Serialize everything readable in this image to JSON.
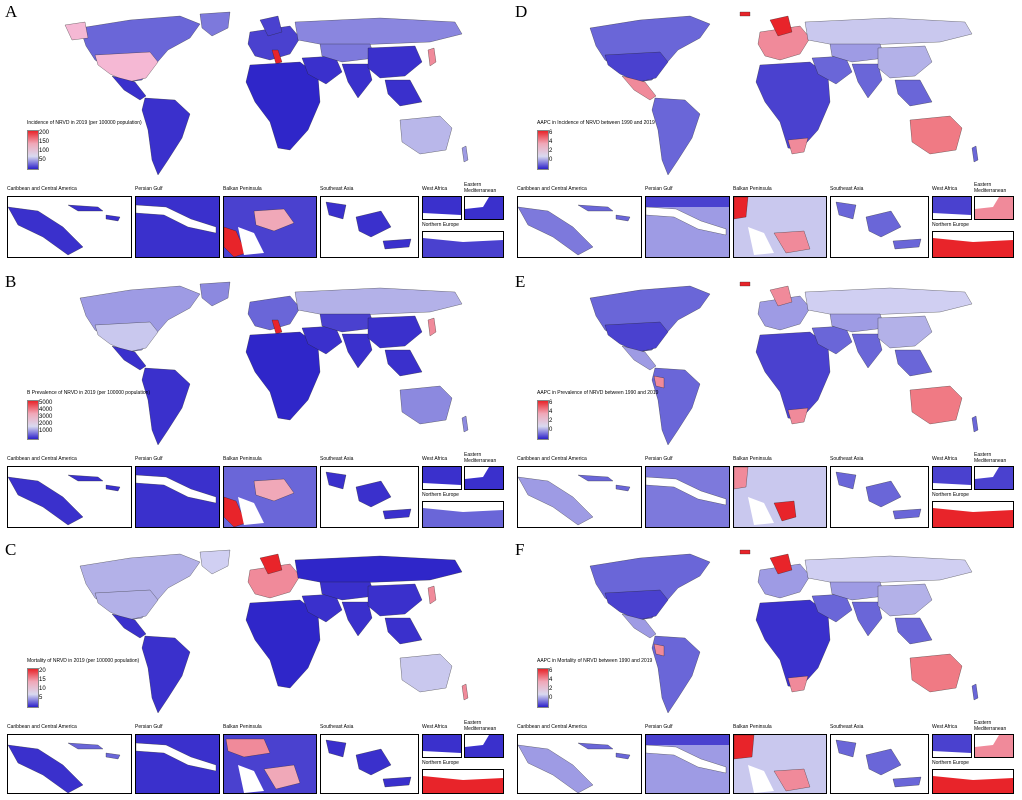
{
  "colors": {
    "low": "#2b20c9",
    "mid": "#d9d9f0",
    "high": "#e8242a",
    "ocean": "#ffffff"
  },
  "inset_titles": {
    "caribbean": "Caribbean and Central America",
    "persian_gulf": "Persian Gulf",
    "balkan": "Balkan Peninsula",
    "southeast_asia": "Southeast Asia",
    "west_africa": "West Africa",
    "eastern_med": "Eastern Mediterranean",
    "northern_europe": "Northern Europe"
  },
  "panels": [
    {
      "letter": "A",
      "legend_title": "Incidence of NRVD in 2019 (per 100000 population)",
      "ticks": [
        "200",
        "150",
        "100",
        "50"
      ]
    },
    {
      "letter": "B",
      "legend_title": "Prevalence of NRVD in 2019 (per 100000 population)",
      "legend_prefix": "B",
      "ticks": [
        "5000",
        "4000",
        "3000",
        "2000",
        "1000"
      ]
    },
    {
      "letter": "C",
      "legend_title": "Mortality of NRVD in 2019 (per 100000 population)",
      "ticks": [
        "20",
        "15",
        "10",
        "5"
      ]
    },
    {
      "letter": "D",
      "legend_title": "AAPC in Incidence of NRVD between 1990 and 2019",
      "ticks": [
        "6",
        "4",
        "2",
        "0"
      ]
    },
    {
      "letter": "E",
      "legend_title": "AAPC in Prevalence of NRVD between 1990 and 2019",
      "ticks": [
        "6",
        "4",
        "2",
        "0"
      ]
    },
    {
      "letter": "F",
      "legend_title": "AAPC in Mortality of NRVD between 1990 and 2019",
      "ticks": [
        "6",
        "4",
        "2",
        "0"
      ]
    }
  ]
}
